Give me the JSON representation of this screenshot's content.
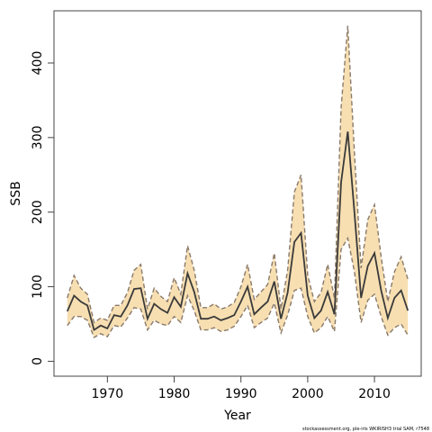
{
  "chart_data": {
    "type": "line",
    "xlabel": "Year",
    "ylabel": "SSB",
    "xlim": [
      1962,
      2017
    ],
    "ylim": [
      -20,
      470
    ],
    "xticks": [
      1970,
      1980,
      1990,
      2000,
      2010
    ],
    "yticks": [
      0,
      100,
      200,
      300,
      400
    ],
    "grid": false,
    "colors": {
      "band": "#f7dfb2",
      "line": "#3a3a3a",
      "dash": "#8a7a6a"
    },
    "x": [
      1964,
      1965,
      1966,
      1967,
      1968,
      1969,
      1970,
      1971,
      1972,
      1973,
      1974,
      1975,
      1976,
      1977,
      1978,
      1979,
      1980,
      1981,
      1982,
      1983,
      1984,
      1985,
      1986,
      1987,
      1988,
      1989,
      1990,
      1991,
      1992,
      1993,
      1994,
      1995,
      1996,
      1997,
      1998,
      1999,
      2000,
      2001,
      2002,
      2003,
      2004,
      2005,
      2006,
      2007,
      2008,
      2009,
      2010,
      2011,
      2012,
      2013,
      2014,
      2015
    ],
    "series": [
      {
        "role": "estimate",
        "values": [
          67,
          88,
          80,
          75,
          42,
          48,
          44,
          62,
          60,
          75,
          97,
          98,
          57,
          77,
          70,
          65,
          86,
          73,
          118,
          93,
          57,
          57,
          60,
          55,
          58,
          62,
          80,
          100,
          63,
          72,
          80,
          107,
          57,
          92,
          160,
          172,
          88,
          58,
          68,
          93,
          63,
          240,
          308,
          200,
          85,
          128,
          145,
          95,
          58,
          85,
          95,
          68
        ]
      },
      {
        "role": "upper",
        "values": [
          85,
          115,
          98,
          90,
          52,
          58,
          55,
          75,
          75,
          92,
          122,
          130,
          70,
          98,
          87,
          80,
          112,
          90,
          155,
          122,
          72,
          72,
          77,
          70,
          73,
          79,
          100,
          130,
          83,
          93,
          103,
          145,
          70,
          122,
          227,
          250,
          115,
          80,
          92,
          130,
          85,
          340,
          450,
          280,
          125,
          190,
          210,
          140,
          80,
          120,
          140,
          110
        ]
      },
      {
        "role": "lower",
        "values": [
          48,
          60,
          60,
          55,
          32,
          37,
          33,
          48,
          46,
          58,
          72,
          70,
          42,
          55,
          50,
          48,
          60,
          52,
          88,
          68,
          42,
          42,
          45,
          40,
          42,
          47,
          60,
          75,
          45,
          52,
          58,
          78,
          38,
          62,
          95,
          98,
          60,
          38,
          45,
          60,
          40,
          150,
          165,
          120,
          52,
          82,
          90,
          60,
          35,
          45,
          50,
          35
        ]
      }
    ]
  },
  "footnote": "stockassessment.org,  ple-iris  WKIRISH3  trial  SAM,  r7548"
}
